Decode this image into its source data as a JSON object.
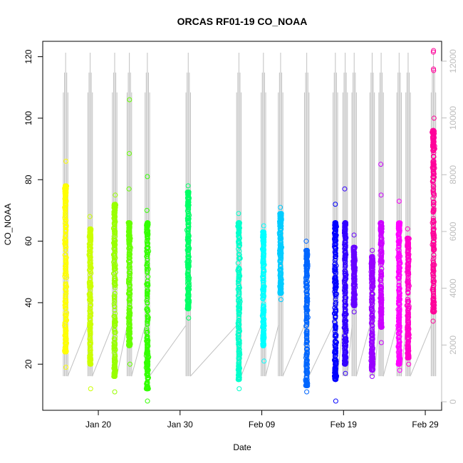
{
  "chart_data": {
    "type": "scatter",
    "title": "ORCAS RF01-19 CO_NOAA",
    "xlabel": "Date",
    "ylabel": "CO_NOAA",
    "x_ticks": [
      "Jan 20",
      "Jan 30",
      "Feb 09",
      "Feb 19",
      "Feb 29"
    ],
    "x_tick_day": [
      20,
      30,
      40,
      50,
      60
    ],
    "xlim_day": [
      13.2,
      62.0
    ],
    "ylim": [
      5,
      125
    ],
    "y_ticks": [
      20,
      40,
      60,
      80,
      100,
      120
    ],
    "y2_ticks": [
      0,
      2000,
      4000,
      6000,
      8000,
      10000,
      12000
    ],
    "y2lim": [
      -300,
      12700
    ],
    "grid": false,
    "legend": "none",
    "point_marker": "open-circle",
    "secondary_series_color": "#c0c0c0",
    "flights": [
      {
        "day": 16.0,
        "min": 19,
        "max": 86,
        "lo": 24,
        "hi": 78,
        "color": "#ffff00",
        "outliers": []
      },
      {
        "day": 19.0,
        "min": 12,
        "max": 68,
        "lo": 20,
        "hi": 64,
        "color": "#ccff00",
        "outliers": []
      },
      {
        "day": 22.0,
        "min": 11,
        "max": 75,
        "lo": 16,
        "hi": 72,
        "color": "#99ff00",
        "outliers": []
      },
      {
        "day": 23.8,
        "min": 20,
        "max": 77,
        "lo": 26,
        "hi": 66,
        "color": "#66ff00",
        "outliers": [
          88.5,
          106
        ]
      },
      {
        "day": 26.0,
        "min": 8,
        "max": 70,
        "lo": 12,
        "hi": 66,
        "color": "#33ff00",
        "outliers": [
          81
        ]
      },
      {
        "day": 31.0,
        "min": 35,
        "max": 78,
        "lo": 38,
        "hi": 76,
        "color": "#00ff66",
        "outliers": []
      },
      {
        "day": 37.2,
        "min": 12,
        "max": 69,
        "lo": 15,
        "hi": 66,
        "color": "#00ffcc",
        "outliers": []
      },
      {
        "day": 40.2,
        "min": 21,
        "max": 65,
        "lo": 26,
        "hi": 63,
        "color": "#00ffff",
        "outliers": []
      },
      {
        "day": 42.3,
        "min": 41,
        "max": 71,
        "lo": 43,
        "hi": 69,
        "color": "#00ccff",
        "outliers": []
      },
      {
        "day": 45.5,
        "min": 11,
        "max": 60,
        "lo": 13,
        "hi": 57,
        "color": "#0066ff",
        "outliers": []
      },
      {
        "day": 49.0,
        "min": 8,
        "max": 72,
        "lo": 15,
        "hi": 66,
        "color": "#0000ff",
        "outliers": []
      },
      {
        "day": 50.2,
        "min": 17,
        "max": 77,
        "lo": 20,
        "hi": 66,
        "color": "#3300ff",
        "outliers": []
      },
      {
        "day": 51.3,
        "min": 37,
        "max": 62,
        "lo": 39,
        "hi": 58,
        "color": "#6600ff",
        "outliers": []
      },
      {
        "day": 53.5,
        "min": 16,
        "max": 57,
        "lo": 18,
        "hi": 55,
        "color": "#9900ff",
        "outliers": []
      },
      {
        "day": 54.6,
        "min": 27,
        "max": 85,
        "lo": 32,
        "hi": 66,
        "color": "#cc00ff",
        "outliers": [
          75
        ]
      },
      {
        "day": 56.8,
        "min": 18,
        "max": 73,
        "lo": 20,
        "hi": 66,
        "color": "#ff00ff",
        "outliers": []
      },
      {
        "day": 57.9,
        "min": 20,
        "max": 64,
        "lo": 22,
        "hi": 61,
        "color": "#ff00cc",
        "outliers": []
      },
      {
        "day": 61.0,
        "min": 34,
        "max": 122,
        "lo": 37,
        "hi": 96,
        "color": "#ff0099",
        "outliers": [
          100,
          115.5,
          116,
          121.5
        ]
      }
    ]
  }
}
